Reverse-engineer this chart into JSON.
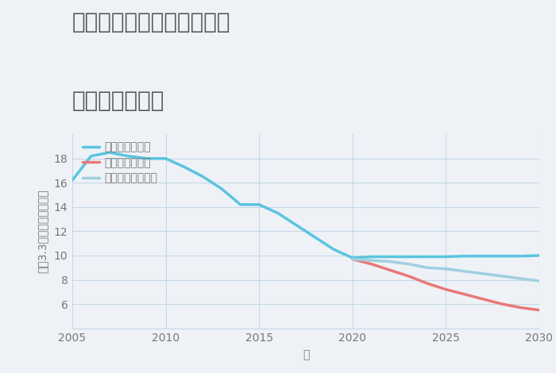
{
  "title_line1": "岐阜県大野郡白川村平瀬の",
  "title_line2": "土地の価格推移",
  "xlabel": "年",
  "ylabel": "坪（3.3㎡）単価（万円）",
  "background_color": "#eef2f6",
  "plot_bg_color": "#eef2f6",
  "ylim": [
    4,
    20
  ],
  "yticks": [
    6,
    8,
    10,
    12,
    14,
    16,
    18
  ],
  "xlim": [
    2005,
    2030
  ],
  "xticks": [
    2005,
    2010,
    2015,
    2020,
    2025,
    2030
  ],
  "good_scenario": {
    "label": "グッドシナリオ",
    "color": "#5bc4e0",
    "linewidth": 2.5,
    "x": [
      2005,
      2006,
      2007,
      2008,
      2009,
      2010,
      2011,
      2012,
      2013,
      2014,
      2015,
      2016,
      2017,
      2018,
      2019,
      2020,
      2021,
      2022,
      2023,
      2024,
      2025,
      2026,
      2027,
      2028,
      2029,
      2030
    ],
    "y": [
      16.2,
      18.2,
      18.5,
      18.2,
      18.0,
      18.0,
      17.3,
      16.5,
      15.5,
      14.2,
      14.2,
      13.5,
      12.5,
      11.5,
      10.5,
      9.8,
      9.9,
      9.9,
      9.9,
      9.9,
      9.9,
      9.95,
      9.95,
      9.95,
      9.95,
      10.0
    ]
  },
  "bad_scenario": {
    "label": "バッドシナリオ",
    "color": "#e87878",
    "linewidth": 2.5,
    "x": [
      2020,
      2021,
      2022,
      2023,
      2024,
      2025,
      2026,
      2027,
      2028,
      2029,
      2030
    ],
    "y": [
      9.7,
      9.3,
      8.8,
      8.3,
      7.7,
      7.2,
      6.8,
      6.4,
      6.0,
      5.7,
      5.5
    ]
  },
  "normal_scenario": {
    "label": "ノーマルシナリオ",
    "color": "#a0cfe0",
    "linewidth": 2.5,
    "x": [
      2020,
      2021,
      2022,
      2023,
      2024,
      2025,
      2026,
      2027,
      2028,
      2029,
      2030
    ],
    "y": [
      9.7,
      9.6,
      9.5,
      9.3,
      9.0,
      8.9,
      8.7,
      8.5,
      8.3,
      8.1,
      7.9
    ]
  },
  "grid_color": "#c5d8e8",
  "title_color": "#555555",
  "tick_color": "#777777",
  "legend_fontsize": 10,
  "title_fontsize": 20,
  "axis_label_fontsize": 10
}
